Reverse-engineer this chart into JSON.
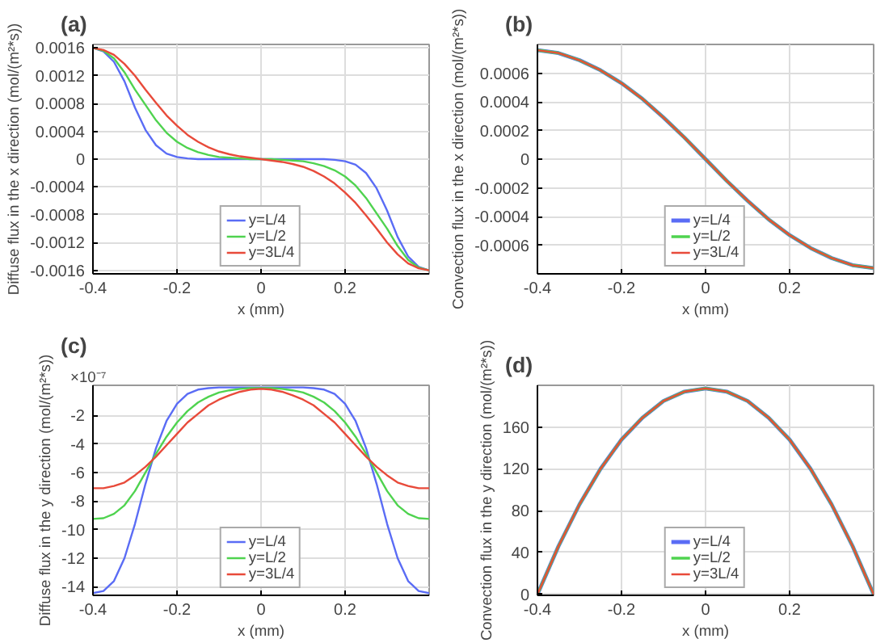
{
  "chart_data": [
    {
      "type": "line",
      "title": "(a)",
      "xlabel": "x (mm)",
      "ylabel": "Diffuse flux in the x direction (mol/(m²*s))",
      "xlim": [
        -0.4,
        0.4
      ],
      "xticks": [
        -0.4,
        -0.2,
        0,
        0.2
      ],
      "ylim": [
        -0.00165,
        0.00165
      ],
      "yticks": [
        -0.0016,
        -0.0012,
        -0.0008,
        -0.0004,
        0,
        0.0004,
        0.0008,
        0.0012,
        0.0016
      ],
      "grid": true,
      "legend": "bottom",
      "line_style": "solid",
      "x": [
        -0.4,
        -0.375,
        -0.35,
        -0.325,
        -0.3,
        -0.275,
        -0.25,
        -0.225,
        -0.2,
        -0.175,
        -0.15,
        -0.125,
        -0.1,
        -0.075,
        -0.05,
        -0.025,
        0,
        0.025,
        0.05,
        0.075,
        0.1,
        0.125,
        0.15,
        0.175,
        0.2,
        0.225,
        0.25,
        0.275,
        0.3,
        0.325,
        0.35,
        0.375,
        0.4
      ],
      "series": [
        {
          "name": "y=L/4",
          "color": "#5a6cf5",
          "values": [
            0.0016,
            0.00155,
            0.0014,
            0.00112,
            0.00074,
            0.00042,
            0.0002,
            8e-05,
            3e-05,
            1e-05,
            0,
            0,
            0,
            0,
            0,
            0,
            0,
            0,
            0,
            0,
            0,
            0,
            0,
            -1e-05,
            -3e-05,
            -8e-05,
            -0.0002,
            -0.00042,
            -0.00074,
            -0.00112,
            -0.0014,
            -0.00155,
            -0.0016
          ]
        },
        {
          "name": "y=L/2",
          "color": "#4fd34f",
          "values": [
            0.0016,
            0.00156,
            0.00145,
            0.00125,
            0.001,
            0.00078,
            0.00056,
            0.00038,
            0.00025,
            0.00016,
            0.0001,
            6e-05,
            3e-05,
            2e-05,
            1e-05,
            0,
            0,
            0,
            -1e-05,
            -2e-05,
            -3e-05,
            -6e-05,
            -0.0001,
            -0.00016,
            -0.00025,
            -0.00038,
            -0.00056,
            -0.00078,
            -0.001,
            -0.00125,
            -0.00145,
            -0.00156,
            -0.0016
          ]
        },
        {
          "name": "y=3L/4",
          "color": "#e84a3a",
          "values": [
            0.0016,
            0.00157,
            0.0015,
            0.00137,
            0.0012,
            0.001,
            0.00081,
            0.00063,
            0.00048,
            0.00035,
            0.00025,
            0.00017,
            0.00011,
            7e-05,
            4e-05,
            2e-05,
            0,
            -2e-05,
            -4e-05,
            -7e-05,
            -0.00011,
            -0.00017,
            -0.00025,
            -0.00035,
            -0.00048,
            -0.00063,
            -0.00081,
            -0.001,
            -0.0012,
            -0.00137,
            -0.0015,
            -0.00157,
            -0.0016
          ]
        }
      ]
    },
    {
      "type": "line",
      "title": "(b)",
      "xlabel": "x (mm)",
      "ylabel": "Convection flux in the x direction (mol/(m²*s))",
      "xlim": [
        -0.4,
        0.4
      ],
      "xticks": [
        -0.4,
        -0.2,
        0,
        0.2
      ],
      "ylim": [
        -0.0008,
        0.0008
      ],
      "yticks": [
        -0.0006,
        -0.0004,
        -0.0002,
        0,
        0.0002,
        0.0004,
        0.0006
      ],
      "grid": true,
      "legend": "bottom",
      "line_style": "solid",
      "x": [
        -0.4,
        -0.35,
        -0.3,
        -0.25,
        -0.2,
        -0.15,
        -0.1,
        -0.05,
        0,
        0.05,
        0.1,
        0.15,
        0.2,
        0.25,
        0.3,
        0.35,
        0.4
      ],
      "series": [
        {
          "name": "y=L/4",
          "color": "#5a6cf5",
          "values": [
            0.00076,
            0.00074,
            0.00069,
            0.00062,
            0.00053,
            0.00042,
            0.00029,
            0.00015,
            0,
            -0.00015,
            -0.00029,
            -0.00042,
            -0.00053,
            -0.00062,
            -0.00069,
            -0.00074,
            -0.00076
          ]
        },
        {
          "name": "y=L/2",
          "color": "#4fd34f",
          "values": [
            0.00076,
            0.00074,
            0.00069,
            0.00062,
            0.00053,
            0.00042,
            0.00029,
            0.00015,
            0,
            -0.00015,
            -0.00029,
            -0.00042,
            -0.00053,
            -0.00062,
            -0.00069,
            -0.00074,
            -0.00076
          ]
        },
        {
          "name": "y=3L/4",
          "color": "#e84a3a",
          "values": [
            0.00076,
            0.00074,
            0.00069,
            0.00062,
            0.00053,
            0.00042,
            0.00029,
            0.00015,
            0,
            -0.00015,
            -0.00029,
            -0.00042,
            -0.00053,
            -0.00062,
            -0.00069,
            -0.00074,
            -0.00076
          ]
        }
      ]
    },
    {
      "type": "line",
      "title": "(c)",
      "xlabel": "x (mm)",
      "ylabel": "Diffuse flux in the y direction (mol/(m²*s))",
      "annotations": [
        "×10⁻⁷"
      ],
      "xlim": [
        -0.4,
        0.4
      ],
      "xticks": [
        -0.4,
        -0.2,
        0,
        0.2
      ],
      "ylim": [
        -14.6,
        0.1
      ],
      "yticks": [
        -14,
        -12,
        -10,
        -8,
        -6,
        -4,
        -2
      ],
      "grid": true,
      "legend": "bottom",
      "line_style": "solid",
      "x": [
        -0.4,
        -0.375,
        -0.35,
        -0.325,
        -0.3,
        -0.275,
        -0.25,
        -0.225,
        -0.2,
        -0.175,
        -0.15,
        -0.125,
        -0.1,
        -0.075,
        -0.05,
        -0.025,
        0,
        0.025,
        0.05,
        0.075,
        0.1,
        0.125,
        0.15,
        0.175,
        0.2,
        0.225,
        0.25,
        0.275,
        0.3,
        0.325,
        0.35,
        0.375,
        0.4
      ],
      "series": [
        {
          "name": "y=L/4",
          "color": "#5a6cf5",
          "values": [
            -14.45,
            -14.3,
            -13.6,
            -12,
            -9.6,
            -6.8,
            -4.3,
            -2.4,
            -1.2,
            -0.5,
            -0.2,
            -0.1,
            -0.05,
            -0.05,
            -0.05,
            -0.05,
            -0.05,
            -0.05,
            -0.05,
            -0.05,
            -0.05,
            -0.1,
            -0.2,
            -0.5,
            -1.2,
            -2.4,
            -4.3,
            -6.8,
            -9.6,
            -12,
            -13.6,
            -14.3,
            -14.45
          ]
        },
        {
          "name": "y=L/2",
          "color": "#4fd34f",
          "values": [
            -9.25,
            -9.2,
            -8.9,
            -8.3,
            -7.3,
            -6,
            -4.7,
            -3.5,
            -2.5,
            -1.7,
            -1.1,
            -0.7,
            -0.4,
            -0.25,
            -0.15,
            -0.1,
            -0.1,
            -0.1,
            -0.15,
            -0.25,
            -0.4,
            -0.7,
            -1.1,
            -1.7,
            -2.5,
            -3.5,
            -4.7,
            -6,
            -7.3,
            -8.3,
            -8.9,
            -9.2,
            -9.25
          ]
        },
        {
          "name": "y=3L/4",
          "color": "#e84a3a",
          "values": [
            -7.1,
            -7.1,
            -6.95,
            -6.7,
            -6.2,
            -5.6,
            -4.9,
            -4.1,
            -3.3,
            -2.5,
            -1.9,
            -1.3,
            -0.9,
            -0.6,
            -0.35,
            -0.2,
            -0.15,
            -0.2,
            -0.35,
            -0.6,
            -0.9,
            -1.3,
            -1.9,
            -2.5,
            -3.3,
            -4.1,
            -4.9,
            -5.6,
            -6.2,
            -6.7,
            -6.95,
            -7.1,
            -7.1
          ]
        }
      ]
    },
    {
      "type": "line",
      "title": "(d)",
      "xlabel": "x (mm)",
      "ylabel": "Convection flux in the y direction (mol/(m²*s))",
      "xlim": [
        -0.4,
        0.4
      ],
      "xticks": [
        -0.4,
        -0.2,
        0,
        0.2
      ],
      "ylim": [
        -1,
        200
      ],
      "yticks": [
        0,
        40,
        80,
        120,
        160
      ],
      "grid": true,
      "legend": "bottom",
      "line_style": "solid",
      "x": [
        -0.4,
        -0.35,
        -0.3,
        -0.25,
        -0.2,
        -0.15,
        -0.1,
        -0.05,
        0,
        0.05,
        0.1,
        0.15,
        0.2,
        0.25,
        0.3,
        0.35,
        0.4
      ],
      "series": [
        {
          "name": "y=L/4",
          "color": "#5a6cf5",
          "values": [
            0,
            46,
            86,
            120,
            148,
            169,
            185,
            194,
            197,
            194,
            185,
            169,
            148,
            120,
            86,
            46,
            0
          ]
        },
        {
          "name": "y=L/2",
          "color": "#4fd34f",
          "values": [
            0,
            46,
            86,
            120,
            148,
            169,
            185,
            194,
            197,
            194,
            185,
            169,
            148,
            120,
            86,
            46,
            0
          ]
        },
        {
          "name": "y=3L/4",
          "color": "#e84a3a",
          "values": [
            0,
            46,
            86,
            120,
            148,
            169,
            185,
            194,
            197,
            194,
            185,
            169,
            148,
            120,
            86,
            46,
            0
          ]
        }
      ]
    }
  ]
}
